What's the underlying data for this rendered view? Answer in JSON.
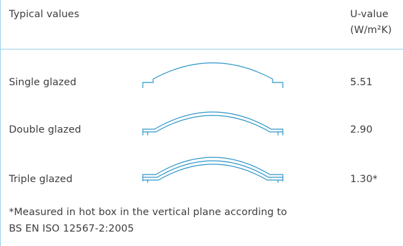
{
  "table": {
    "header": {
      "title": "Typical values",
      "value_label": "U-value",
      "unit_label": "(W/m²K)"
    },
    "rows": [
      {
        "label": "Single glazed",
        "value": "5.51",
        "icon": "single-glazed-arch-icon"
      },
      {
        "label": "Double glazed",
        "value": "2.90",
        "icon": "double-glazed-arch-icon"
      },
      {
        "label": "Triple glazed",
        "value": "1.30*",
        "icon": "triple-glazed-arch-icon"
      }
    ],
    "footnote": {
      "line1": "*Measured in hot box in the vertical plane according to",
      "line2": "BS EN ISO 12567-2:2005"
    }
  },
  "colors": {
    "accent": "#2b95c8",
    "rule": "#9bd0e8",
    "text": "#3c3c3c"
  }
}
